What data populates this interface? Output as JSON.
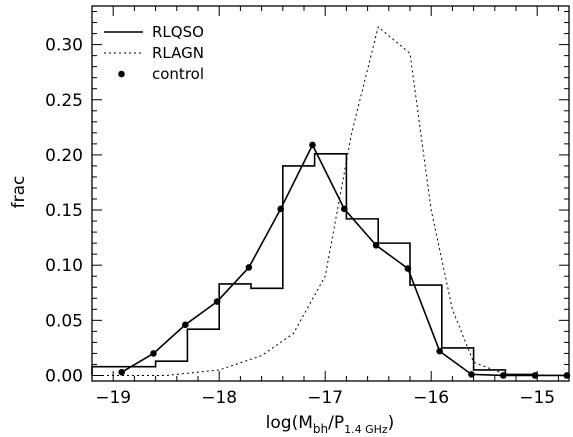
{
  "chart_data": {
    "type": "line",
    "xlabel": {
      "base": "log(M",
      "sub1": "bh",
      "mid": "/P",
      "sub2": "1.4 GHz",
      "end": ")"
    },
    "ylabel": "frac",
    "xlim": [
      -19.2,
      -14.7
    ],
    "ylim": [
      -0.005,
      0.335
    ],
    "x_ticks": [
      {
        "value": -19,
        "label": "−19"
      },
      {
        "value": -18,
        "label": "−18"
      },
      {
        "value": -17,
        "label": "−17"
      },
      {
        "value": -16,
        "label": "−16"
      },
      {
        "value": -15,
        "label": "−15"
      }
    ],
    "y_ticks": [
      {
        "value": 0.0,
        "label": "0.00"
      },
      {
        "value": 0.05,
        "label": "0.05"
      },
      {
        "value": 0.1,
        "label": "0.10"
      },
      {
        "value": 0.15,
        "label": "0.15"
      },
      {
        "value": 0.2,
        "label": "0.20"
      },
      {
        "value": 0.25,
        "label": "0.25"
      },
      {
        "value": 0.3,
        "label": "0.30"
      }
    ],
    "legend": {
      "placement": "top-left",
      "entries": [
        {
          "name": "RLQSO",
          "style": "solid"
        },
        {
          "name": "RLAGN",
          "style": "dotted"
        },
        {
          "name": "control",
          "style": "dot"
        }
      ]
    },
    "series": [
      {
        "name": "RLQSO",
        "kind": "step-histogram",
        "bin_width": 0.3,
        "bins": [
          {
            "x": -19.05,
            "y": 0.008
          },
          {
            "x": -18.75,
            "y": 0.008
          },
          {
            "x": -18.45,
            "y": 0.013
          },
          {
            "x": -18.15,
            "y": 0.042
          },
          {
            "x": -17.85,
            "y": 0.083
          },
          {
            "x": -17.55,
            "y": 0.079
          },
          {
            "x": -17.25,
            "y": 0.19
          },
          {
            "x": -16.95,
            "y": 0.201
          },
          {
            "x": -16.65,
            "y": 0.142
          },
          {
            "x": -16.35,
            "y": 0.12
          },
          {
            "x": -16.05,
            "y": 0.082
          },
          {
            "x": -15.75,
            "y": 0.025
          },
          {
            "x": -15.45,
            "y": 0.005
          },
          {
            "x": -15.15,
            "y": 0.001
          }
        ]
      },
      {
        "name": "RLAGN",
        "kind": "dotted-line",
        "points": [
          {
            "x": -19.2,
            "y": 0.0
          },
          {
            "x": -18.5,
            "y": 0.0
          },
          {
            "x": -18.0,
            "y": 0.005
          },
          {
            "x": -17.6,
            "y": 0.018
          },
          {
            "x": -17.3,
            "y": 0.038
          },
          {
            "x": -17.0,
            "y": 0.09
          },
          {
            "x": -16.75,
            "y": 0.22
          },
          {
            "x": -16.5,
            "y": 0.316
          },
          {
            "x": -16.2,
            "y": 0.292
          },
          {
            "x": -16.0,
            "y": 0.15
          },
          {
            "x": -15.8,
            "y": 0.06
          },
          {
            "x": -15.6,
            "y": 0.012
          },
          {
            "x": -15.3,
            "y": 0.001
          },
          {
            "x": -14.7,
            "y": 0.0
          }
        ]
      },
      {
        "name": "control",
        "kind": "line-with-dots",
        "points": [
          {
            "x": -18.92,
            "y": 0.003
          },
          {
            "x": -18.62,
            "y": 0.02
          },
          {
            "x": -18.32,
            "y": 0.046
          },
          {
            "x": -18.02,
            "y": 0.067
          },
          {
            "x": -17.72,
            "y": 0.098
          },
          {
            "x": -17.42,
            "y": 0.151
          },
          {
            "x": -17.12,
            "y": 0.209
          },
          {
            "x": -16.82,
            "y": 0.151
          },
          {
            "x": -16.52,
            "y": 0.118
          },
          {
            "x": -16.22,
            "y": 0.097
          },
          {
            "x": -15.92,
            "y": 0.022
          },
          {
            "x": -15.62,
            "y": 0.001
          },
          {
            "x": -15.32,
            "y": 0.0
          },
          {
            "x": -15.02,
            "y": 0.0
          },
          {
            "x": -14.72,
            "y": 0.0
          }
        ]
      }
    ]
  }
}
